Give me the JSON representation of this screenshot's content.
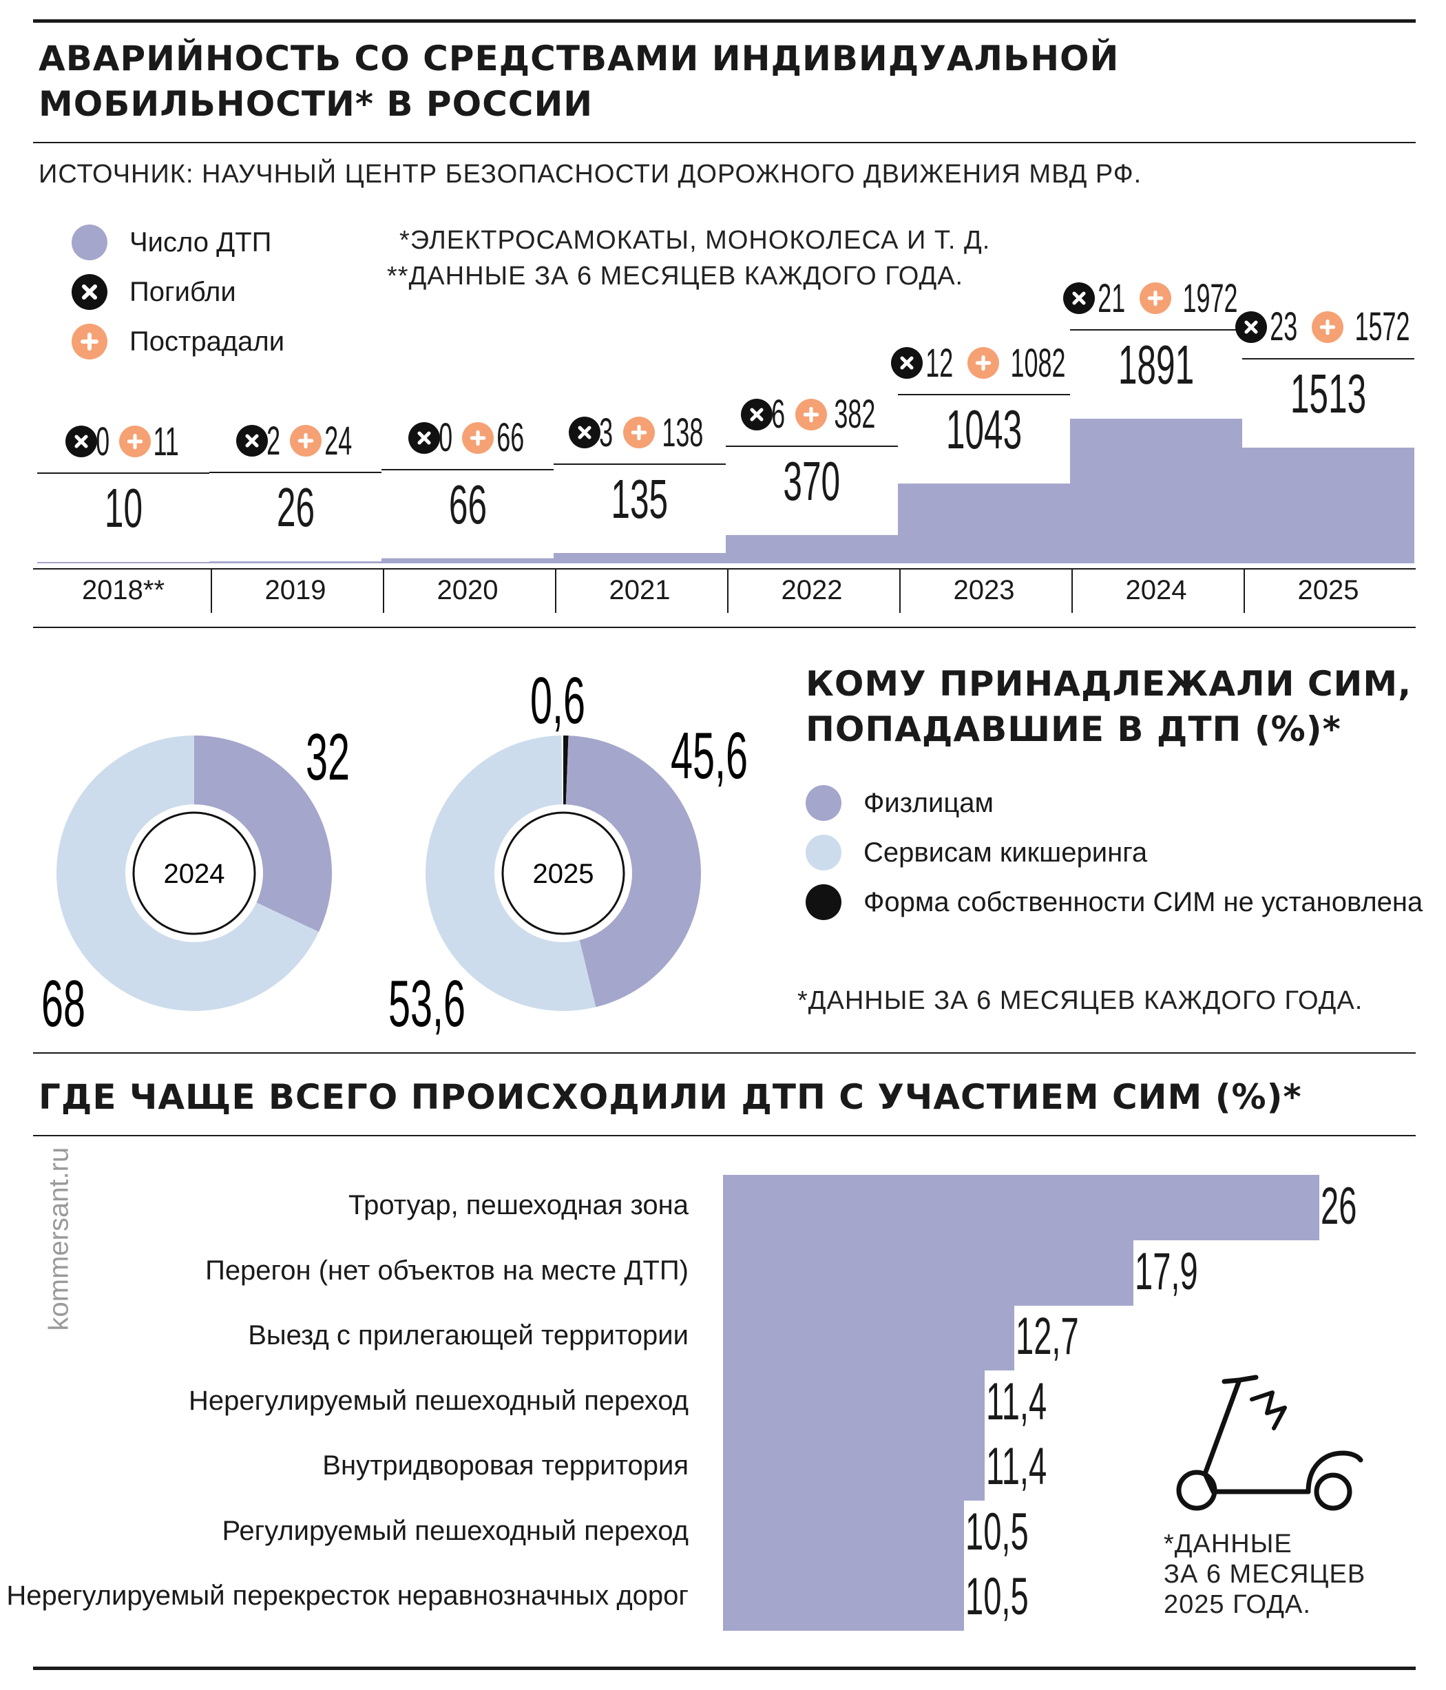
{
  "header": {
    "title": "АВАРИЙНОСТЬ СО СРЕДСТВАМИ ИНДИВИДУАЛЬНОЙ\nМОБИЛЬНОСТИ* В РОССИИ",
    "source": "ИСТОЧНИК: НАУЧНЫЙ ЦЕНТР БЕЗОПАСНОСТИ ДОРОЖНОГО ДВИЖЕНИЯ МВД РФ.",
    "note1": "*ЭЛЕКТРОСАМОКАТЫ, МОНОКОЛЕСА И Т. Д.",
    "note2": "**ДАННЫЕ ЗА 6 МЕСЯЦЕВ КАЖДОГО ГОДА."
  },
  "legend_top": {
    "accidents": "Число ДТП",
    "killed": "Погибли",
    "injured": "Пострадали"
  },
  "donut_section": {
    "title": "КОМУ ПРИНАДЛЕЖАЛИ СИМ,\nПОПАДАВШИЕ В ДТП (%)*",
    "legend": [
      "Физлицам",
      "Сервисам кикшеринга",
      "Форма собственности СИМ не установлена"
    ],
    "note": "*ДАННЫЕ ЗА 6 МЕСЯЦЕВ КАЖДОГО ГОДА."
  },
  "bar_section": {
    "title": "ГДЕ ЧАЩЕ ВСЕГО ПРОИСХОДИЛИ ДТП С УЧАСТИЕМ СИМ (%)*",
    "note": "*ДАННЫЕ\nЗА 6 МЕСЯЦЕВ\n2025 ГОДА.",
    "watermark": "kommersant.ru"
  },
  "colors": {
    "individuals": "#a4a6cb",
    "kicksharing": "#cddcec",
    "unknown": "#111111",
    "injured": "#f5a174",
    "killed": "#111111"
  },
  "icons": {
    "killed": "x-circle-icon",
    "injured": "plus-circle-icon",
    "scooter": "electric-scooter-icon"
  },
  "chart_data": [
    {
      "type": "area",
      "categories": [
        "2018**",
        "2019",
        "2020",
        "2021",
        "2022",
        "2023",
        "2024",
        "2025"
      ],
      "series": [
        {
          "name": "Число ДТП",
          "values": [
            10,
            26,
            66,
            135,
            370,
            1043,
            1891,
            1513
          ]
        },
        {
          "name": "Погибли",
          "values": [
            0,
            2,
            0,
            3,
            6,
            12,
            21,
            23
          ]
        },
        {
          "name": "Пострадали",
          "values": [
            11,
            24,
            66,
            138,
            382,
            1082,
            1972,
            1572
          ]
        }
      ]
    },
    {
      "type": "pie",
      "center_label": "2024",
      "slices": [
        {
          "name": "Физлицам",
          "value": 32
        },
        {
          "name": "Сервисам кикшеринга",
          "value": 68
        }
      ],
      "labels": [
        "32",
        "68"
      ]
    },
    {
      "type": "pie",
      "center_label": "2025",
      "slices": [
        {
          "name": "Форма собственности СИМ не установлена",
          "value": 0.6
        },
        {
          "name": "Физлицам",
          "value": 45.6
        },
        {
          "name": "Сервисам кикшеринга",
          "value": 53.6
        }
      ],
      "labels": [
        "0,6",
        "45,6",
        "53,6"
      ]
    },
    {
      "type": "bar",
      "orientation": "horizontal",
      "categories": [
        "Тротуар, пешеходная зона",
        "Перегон (нет объектов на месте ДТП)",
        "Выезд с прилегающей территории",
        "Нерегулируемый пешеходный переход",
        "Внутридворовая территория",
        "Регулируемый пешеходный переход",
        "Нерегулируемый перекресток неравнозначных дорог"
      ],
      "values": [
        26,
        17.9,
        12.7,
        11.4,
        11.4,
        10.5,
        10.5
      ],
      "value_labels": [
        "26",
        "17,9",
        "12,7",
        "11,4",
        "11,4",
        "10,5",
        "10,5"
      ]
    }
  ]
}
